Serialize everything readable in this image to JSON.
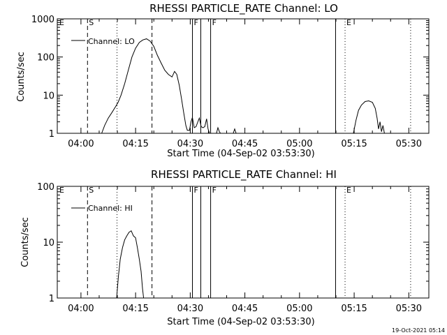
{
  "footer": {
    "timestamp": "19-Oct-2021 05:14"
  },
  "chart_data": [
    {
      "type": "line",
      "title": "RHESSI PARTICLE_RATE Channel: LO",
      "xlabel": "Start Time (04-Sep-02 03:53:30)",
      "ylabel": "Counts/sec",
      "yscale": "log",
      "ylim": [
        1,
        1000
      ],
      "xlim_minutes": [
        -6.5,
        95.5
      ],
      "x_ticks": [
        {
          "label": "04:00",
          "min": 0
        },
        {
          "label": "04:15",
          "min": 15
        },
        {
          "label": "04:30",
          "min": 30
        },
        {
          "label": "04:45",
          "min": 45
        },
        {
          "label": "05:00",
          "min": 60
        },
        {
          "label": "05:15",
          "min": 75
        },
        {
          "label": "05:30",
          "min": 90
        }
      ],
      "y_ticks": [
        {
          "label": "1",
          "value": 1
        },
        {
          "label": "10",
          "value": 10
        },
        {
          "label": "100",
          "value": 100
        },
        {
          "label": "1000",
          "value": 1000
        }
      ],
      "legend": {
        "position": "top-left",
        "label": "Channel: LO"
      },
      "markers": [
        {
          "label": "E",
          "min": -6.3,
          "style": "none"
        },
        {
          "label": "S",
          "min": 1.8,
          "style": "dashed"
        },
        {
          "label": "",
          "min": 9.9,
          "style": "dotted"
        },
        {
          "label": "",
          "min": 19.5,
          "style": "dashed"
        },
        {
          "label": "F",
          "min": 30.6,
          "style": "solid"
        },
        {
          "label": "",
          "min": 32.9,
          "style": "solid"
        },
        {
          "label": "F",
          "min": 35.6,
          "style": "solid"
        },
        {
          "label": "",
          "min": 69.9,
          "style": "solid"
        },
        {
          "label": "E",
          "min": 72.5,
          "style": "dotted"
        },
        {
          "label": "",
          "min": 90.5,
          "style": "dotted"
        }
      ],
      "series": [
        {
          "name": "Channel: LO",
          "segments": [
            [
              [
                5.7,
                1
              ],
              [
                6.5,
                1.6
              ],
              [
                7.5,
                2.5
              ],
              [
                8.5,
                3.5
              ],
              [
                9.5,
                5
              ],
              [
                10.2,
                6.5
              ],
              [
                11,
                10
              ],
              [
                12,
                20
              ],
              [
                13,
                45
              ],
              [
                14,
                100
              ],
              [
                15,
                170
              ],
              [
                16,
                240
              ],
              [
                17,
                280
              ],
              [
                18,
                300
              ],
              [
                19,
                260
              ],
              [
                20,
                190
              ],
              [
                21,
                110
              ],
              [
                22,
                70
              ],
              [
                23,
                45
              ],
              [
                24,
                35
              ],
              [
                25,
                30
              ],
              [
                25.7,
                42
              ],
              [
                26.3,
                35
              ],
              [
                27,
                18
              ],
              [
                27.6,
                8
              ],
              [
                28.2,
                3.5
              ],
              [
                28.8,
                1.6
              ],
              [
                29.2,
                1.2
              ],
              [
                29.8,
                1.2
              ],
              [
                30.2,
                2
              ],
              [
                30.6,
                2.6
              ],
              [
                31.1,
                1.4
              ],
              [
                31.6,
                1.5
              ],
              [
                32.1,
                2
              ],
              [
                32.5,
                2.5
              ],
              [
                33,
                1.5
              ],
              [
                33.5,
                1.4
              ],
              [
                34,
                1.5
              ],
              [
                34.5,
                2.4
              ],
              [
                34.9,
                1.3
              ],
              [
                35.3,
                1
              ]
            ],
            [
              [
                37.2,
                1
              ],
              [
                37.6,
                1.4
              ],
              [
                38,
                1.1
              ],
              [
                38.3,
                1
              ]
            ],
            [
              [
                41.8,
                1
              ],
              [
                42.2,
                1.3
              ],
              [
                42.6,
                1
              ]
            ],
            [
              [
                74.8,
                1
              ],
              [
                75.5,
                2.2
              ],
              [
                76.2,
                4
              ],
              [
                77,
                5.5
              ],
              [
                78,
                6.8
              ],
              [
                79,
                7.1
              ],
              [
                80,
                6.5
              ],
              [
                80.8,
                4.5
              ],
              [
                81.3,
                2.5
              ],
              [
                81.7,
                1.3
              ],
              [
                82.1,
                2
              ],
              [
                82.5,
                1.1
              ],
              [
                82.9,
                1.6
              ],
              [
                83.3,
                1
              ]
            ]
          ]
        }
      ]
    },
    {
      "type": "line",
      "title": "RHESSI PARTICLE_RATE Channel: HI",
      "xlabel": "Start Time (04-Sep-02 03:53:30)",
      "ylabel": "Counts/sec",
      "yscale": "log",
      "ylim": [
        1,
        100
      ],
      "xlim_minutes": [
        -6.5,
        95.5
      ],
      "x_ticks": [
        {
          "label": "04:00",
          "min": 0
        },
        {
          "label": "04:15",
          "min": 15
        },
        {
          "label": "04:30",
          "min": 30
        },
        {
          "label": "04:45",
          "min": 45
        },
        {
          "label": "05:00",
          "min": 60
        },
        {
          "label": "05:15",
          "min": 75
        },
        {
          "label": "05:30",
          "min": 90
        }
      ],
      "y_ticks": [
        {
          "label": "1",
          "value": 1
        },
        {
          "label": "10",
          "value": 10
        },
        {
          "label": "100",
          "value": 100
        }
      ],
      "legend": {
        "position": "top-left",
        "label": "Channel: HI"
      },
      "markers": [
        {
          "label": "E",
          "min": -6.3,
          "style": "none"
        },
        {
          "label": "S",
          "min": 1.8,
          "style": "dashed"
        },
        {
          "label": "",
          "min": 9.9,
          "style": "dotted"
        },
        {
          "label": "",
          "min": 19.5,
          "style": "dashed"
        },
        {
          "label": "F",
          "min": 30.6,
          "style": "solid"
        },
        {
          "label": "",
          "min": 32.9,
          "style": "solid"
        },
        {
          "label": "F",
          "min": 35.6,
          "style": "solid"
        },
        {
          "label": "",
          "min": 69.9,
          "style": "solid"
        },
        {
          "label": "E",
          "min": 72.5,
          "style": "dotted"
        },
        {
          "label": "",
          "min": 90.5,
          "style": "dotted"
        }
      ],
      "series": [
        {
          "name": "Channel: HI",
          "segments": [
            [
              [
                9.8,
                1
              ],
              [
                10.3,
                2.5
              ],
              [
                10.8,
                5
              ],
              [
                11.4,
                8
              ],
              [
                12,
                11
              ],
              [
                12.6,
                13
              ],
              [
                13.2,
                15
              ],
              [
                13.8,
                16
              ],
              [
                14.4,
                13
              ],
              [
                15,
                12
              ],
              [
                15.5,
                8
              ],
              [
                16,
                5
              ],
              [
                16.5,
                3
              ],
              [
                16.9,
                1.5
              ],
              [
                17.2,
                1
              ]
            ]
          ]
        }
      ]
    }
  ]
}
